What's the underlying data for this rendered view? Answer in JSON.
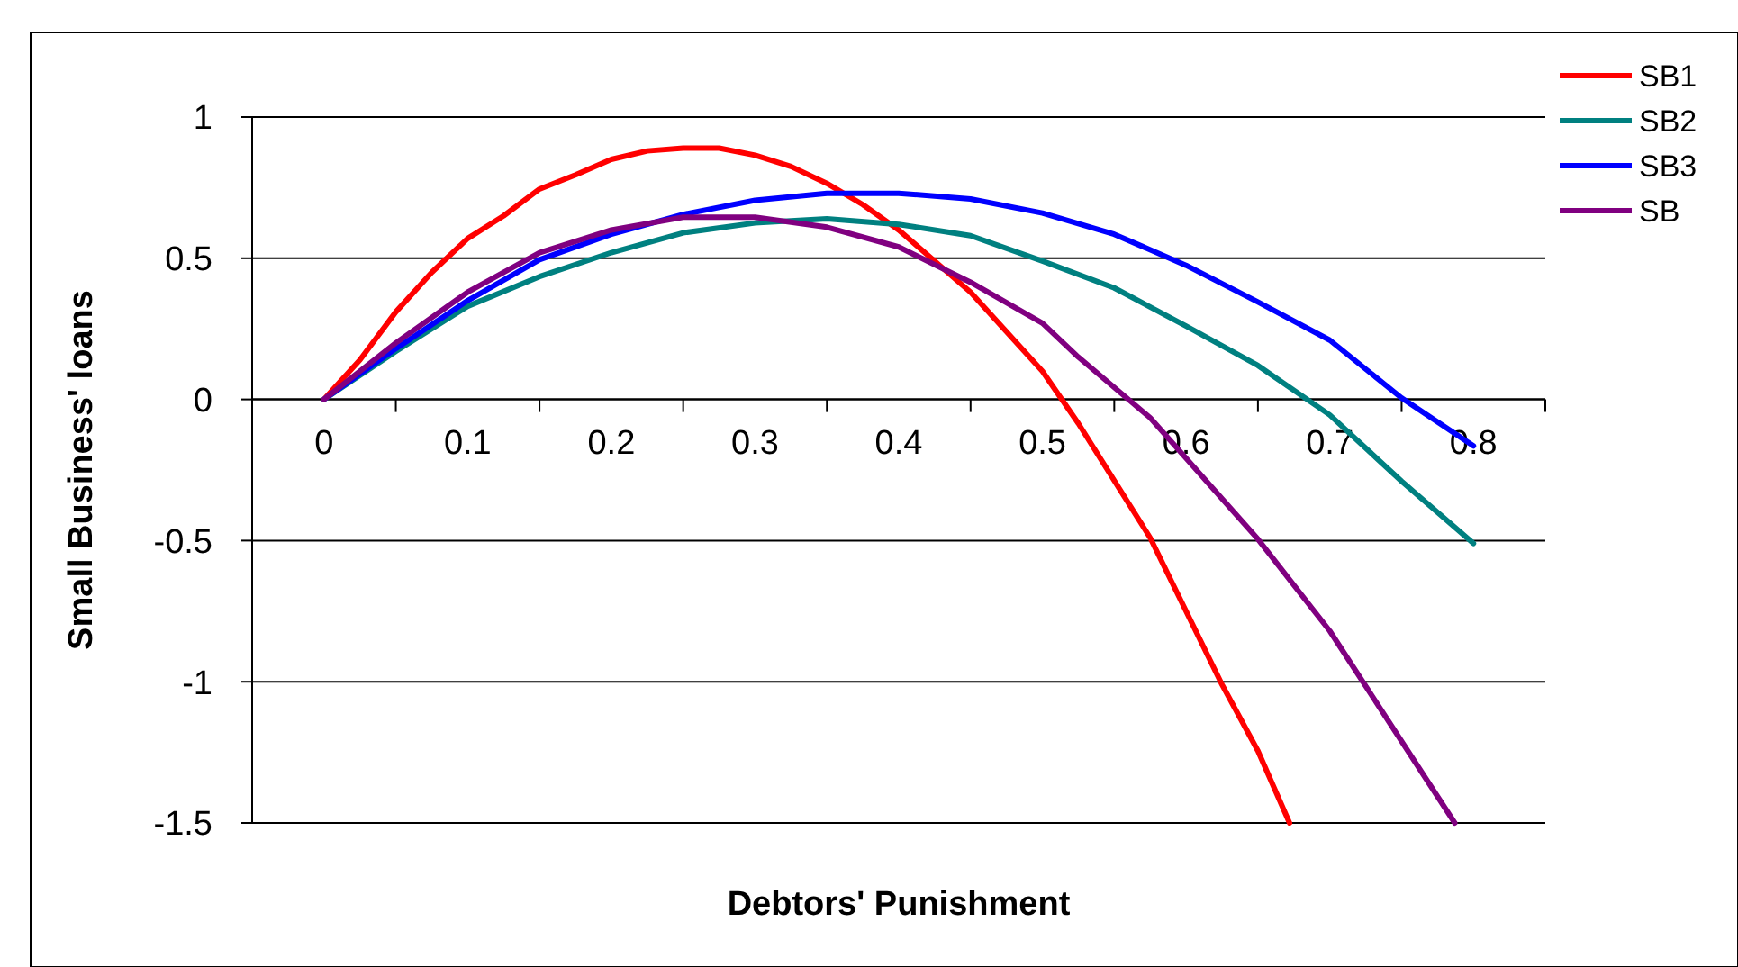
{
  "chart_data": {
    "type": "line",
    "xlabel": "Debtors' Punishment",
    "ylabel": "Small Business' loans",
    "xlim": [
      -0.05,
      0.85
    ],
    "xticks": [
      0,
      {
        "value": 0.05,
        "label": null
      },
      0.1,
      {
        "value": 0.15,
        "label": null
      },
      0.2,
      {
        "value": 0.25,
        "label": null
      },
      0.3,
      {
        "value": 0.35,
        "label": null
      },
      0.4,
      {
        "value": 0.45,
        "label": null
      },
      0.5,
      {
        "value": 0.55,
        "label": null
      },
      0.6,
      {
        "value": 0.65,
        "label": null
      },
      0.7,
      {
        "value": 0.75,
        "label": null
      },
      0.8,
      {
        "value": 0.85,
        "label": null
      }
    ],
    "ylim": [
      -1.5,
      1
    ],
    "yticks": [
      -1.5,
      -1,
      -0.5,
      0,
      0.5,
      1
    ],
    "grid": "y",
    "legend": "right",
    "marker": "none",
    "line_style": "solid",
    "series": [
      {
        "name": "SB1",
        "color": "#ff0000",
        "x": [
          0,
          0.025,
          0.05,
          0.075,
          0.1,
          0.125,
          0.15,
          0.175,
          0.2,
          0.225,
          0.25,
          0.275,
          0.3,
          0.325,
          0.35,
          0.375,
          0.4,
          0.45,
          0.5,
          0.525,
          0.575,
          0.625,
          0.65,
          0.672
        ],
        "values": [
          0,
          0.14,
          0.31,
          0.45,
          0.57,
          0.65,
          0.745,
          0.795,
          0.85,
          0.88,
          0.89,
          0.89,
          0.865,
          0.825,
          0.765,
          0.69,
          0.6,
          0.38,
          0.1,
          -0.085,
          -0.49,
          -1.01,
          -1.245,
          -1.5
        ]
      },
      {
        "name": "SB2",
        "color": "#008080",
        "x": [
          0,
          0.05,
          0.1,
          0.15,
          0.2,
          0.25,
          0.3,
          0.35,
          0.4,
          0.45,
          0.5,
          0.55,
          0.6,
          0.65,
          0.7,
          0.75,
          0.8
        ],
        "values": [
          0,
          0.17,
          0.33,
          0.435,
          0.52,
          0.59,
          0.625,
          0.64,
          0.62,
          0.58,
          0.49,
          0.395,
          0.26,
          0.12,
          -0.055,
          -0.29,
          -0.51
        ]
      },
      {
        "name": "SB3",
        "color": "#0000ff",
        "x": [
          0,
          0.05,
          0.1,
          0.15,
          0.2,
          0.25,
          0.3,
          0.35,
          0.4,
          0.45,
          0.5,
          0.55,
          0.6,
          0.65,
          0.7,
          0.75,
          0.8
        ],
        "values": [
          0,
          0.18,
          0.35,
          0.495,
          0.585,
          0.655,
          0.705,
          0.73,
          0.73,
          0.71,
          0.66,
          0.585,
          0.475,
          0.345,
          0.21,
          0.005,
          -0.165
        ]
      },
      {
        "name": "SB",
        "color": "#800080",
        "x": [
          0,
          0.05,
          0.1,
          0.15,
          0.2,
          0.25,
          0.3,
          0.35,
          0.4,
          0.45,
          0.5,
          0.525,
          0.575,
          0.65,
          0.7,
          0.787
        ],
        "values": [
          0,
          0.2,
          0.38,
          0.52,
          0.6,
          0.645,
          0.645,
          0.61,
          0.54,
          0.415,
          0.27,
          0.15,
          -0.065,
          -0.495,
          -0.82,
          -1.5
        ]
      }
    ]
  }
}
